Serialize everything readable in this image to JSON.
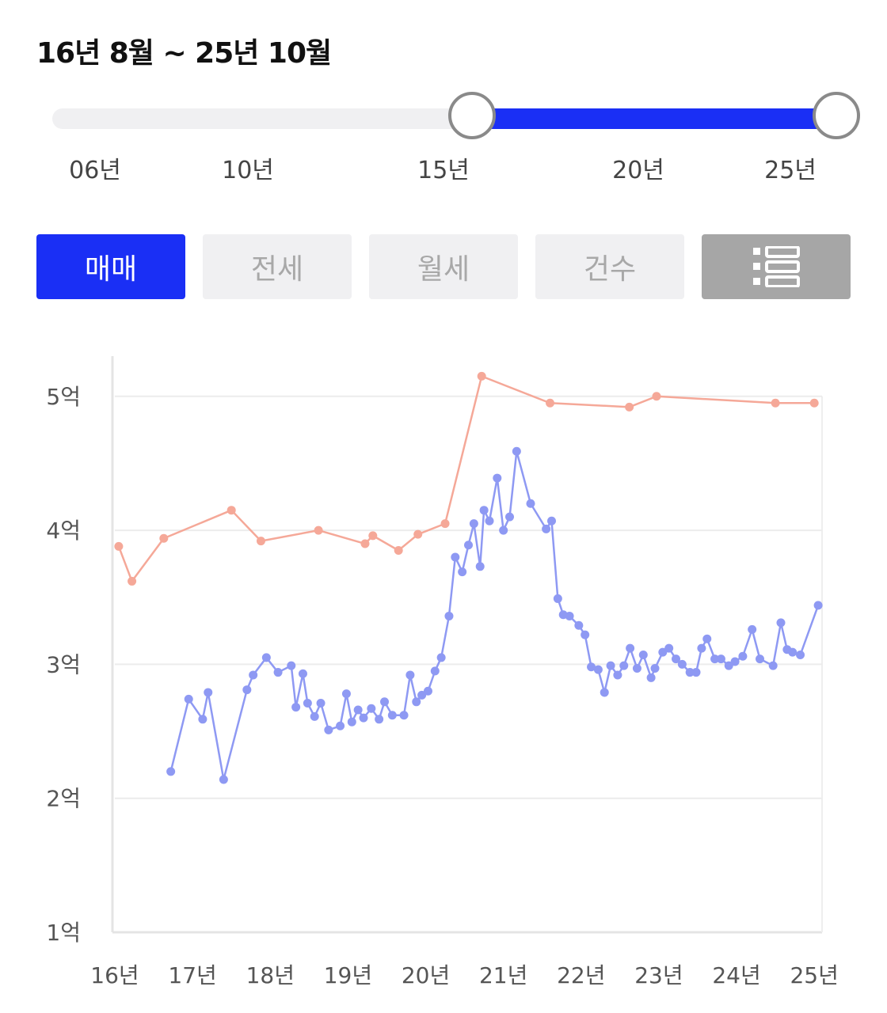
{
  "header": {
    "period": "16년 8월 ~ 25년 10월"
  },
  "slider": {
    "ticks": [
      "06년",
      "10년",
      "15년",
      "20년",
      "25년"
    ],
    "range_start_year": 2016.6,
    "range_end_year": 2025.8,
    "min_year": 2006,
    "max_year": 2025.8,
    "colors": {
      "track": "#f0f0f2",
      "range": "#1a2ff5",
      "handle_border": "#8a8a8a"
    }
  },
  "tabs": [
    {
      "label": "매매",
      "active": true
    },
    {
      "label": "전세",
      "active": false
    },
    {
      "label": "월세",
      "active": false
    },
    {
      "label": "건수",
      "active": false
    }
  ],
  "list_button": {
    "icon": "list-view-icon"
  },
  "chart_data": {
    "type": "line",
    "y_tick_labels": [
      "5억",
      "4억",
      "3억",
      "2억",
      "1억"
    ],
    "y_ticks": [
      5,
      4,
      3,
      2,
      1
    ],
    "ylim": [
      1,
      5.3
    ],
    "x_tick_labels": [
      "16년",
      "17년",
      "18년",
      "19년",
      "20년",
      "21년",
      "22년",
      "23년",
      "24년",
      "25년"
    ],
    "x_ticks": [
      2016,
      2017,
      2018,
      2019,
      2020,
      2021,
      2022,
      2023,
      2024,
      2025
    ],
    "xlim": [
      2016,
      2025.1
    ],
    "grid": true,
    "series": [
      {
        "color": "#f5a898",
        "points": [
          [
            2016.05,
            3.88
          ],
          [
            2016.22,
            3.62
          ],
          [
            2016.63,
            3.94
          ],
          [
            2017.5,
            4.15
          ],
          [
            2017.88,
            3.92
          ],
          [
            2018.62,
            4.0
          ],
          [
            2019.22,
            3.9
          ],
          [
            2019.32,
            3.96
          ],
          [
            2019.65,
            3.85
          ],
          [
            2019.9,
            3.97
          ],
          [
            2020.25,
            4.05
          ],
          [
            2020.72,
            5.15
          ],
          [
            2021.6,
            4.95
          ],
          [
            2022.62,
            4.92
          ],
          [
            2022.97,
            5.0
          ],
          [
            2024.5,
            4.95
          ],
          [
            2025.0,
            4.95
          ]
        ]
      },
      {
        "color": "#8e99f3",
        "points": [
          [
            2016.72,
            2.2
          ],
          [
            2016.95,
            2.74
          ],
          [
            2017.13,
            2.59
          ],
          [
            2017.2,
            2.79
          ],
          [
            2017.4,
            2.14
          ],
          [
            2017.7,
            2.81
          ],
          [
            2017.78,
            2.92
          ],
          [
            2017.95,
            3.05
          ],
          [
            2018.1,
            2.94
          ],
          [
            2018.27,
            2.99
          ],
          [
            2018.33,
            2.68
          ],
          [
            2018.42,
            2.93
          ],
          [
            2018.48,
            2.71
          ],
          [
            2018.57,
            2.61
          ],
          [
            2018.65,
            2.71
          ],
          [
            2018.75,
            2.51
          ],
          [
            2018.9,
            2.54
          ],
          [
            2018.98,
            2.78
          ],
          [
            2019.05,
            2.57
          ],
          [
            2019.13,
            2.66
          ],
          [
            2019.2,
            2.6
          ],
          [
            2019.3,
            2.67
          ],
          [
            2019.4,
            2.59
          ],
          [
            2019.47,
            2.72
          ],
          [
            2019.57,
            2.62
          ],
          [
            2019.72,
            2.62
          ],
          [
            2019.8,
            2.92
          ],
          [
            2019.88,
            2.72
          ],
          [
            2019.95,
            2.77
          ],
          [
            2020.03,
            2.8
          ],
          [
            2020.12,
            2.95
          ],
          [
            2020.2,
            3.05
          ],
          [
            2020.3,
            3.36
          ],
          [
            2020.38,
            3.8
          ],
          [
            2020.47,
            3.69
          ],
          [
            2020.55,
            3.89
          ],
          [
            2020.62,
            4.05
          ],
          [
            2020.7,
            3.73
          ],
          [
            2020.75,
            4.15
          ],
          [
            2020.82,
            4.07
          ],
          [
            2020.92,
            4.39
          ],
          [
            2021.0,
            4.0
          ],
          [
            2021.08,
            4.1
          ],
          [
            2021.17,
            4.59
          ],
          [
            2021.35,
            4.2
          ],
          [
            2021.55,
            4.01
          ],
          [
            2021.62,
            4.07
          ],
          [
            2021.7,
            3.49
          ],
          [
            2021.77,
            3.37
          ],
          [
            2021.85,
            3.36
          ],
          [
            2021.97,
            3.29
          ],
          [
            2022.05,
            3.22
          ],
          [
            2022.13,
            2.98
          ],
          [
            2022.22,
            2.96
          ],
          [
            2022.3,
            2.79
          ],
          [
            2022.38,
            2.99
          ],
          [
            2022.47,
            2.92
          ],
          [
            2022.55,
            2.99
          ],
          [
            2022.63,
            3.12
          ],
          [
            2022.72,
            2.97
          ],
          [
            2022.8,
            3.07
          ],
          [
            2022.9,
            2.9
          ],
          [
            2022.95,
            2.97
          ],
          [
            2023.05,
            3.09
          ],
          [
            2023.13,
            3.12
          ],
          [
            2023.22,
            3.04
          ],
          [
            2023.3,
            3.0
          ],
          [
            2023.4,
            2.94
          ],
          [
            2023.48,
            2.94
          ],
          [
            2023.55,
            3.12
          ],
          [
            2023.62,
            3.19
          ],
          [
            2023.72,
            3.04
          ],
          [
            2023.8,
            3.04
          ],
          [
            2023.9,
            2.99
          ],
          [
            2023.98,
            3.02
          ],
          [
            2024.08,
            3.06
          ],
          [
            2024.2,
            3.26
          ],
          [
            2024.3,
            3.04
          ],
          [
            2024.47,
            2.99
          ],
          [
            2024.57,
            3.31
          ],
          [
            2024.65,
            3.11
          ],
          [
            2024.72,
            3.09
          ],
          [
            2024.82,
            3.07
          ],
          [
            2025.05,
            3.44
          ]
        ]
      }
    ]
  }
}
